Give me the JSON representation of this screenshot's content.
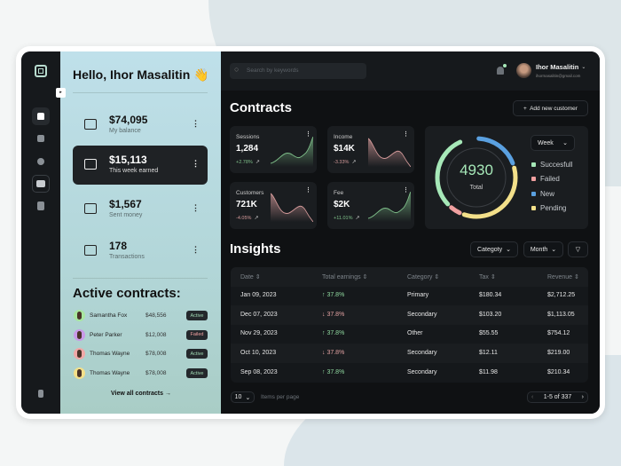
{
  "sidebar": {
    "items": [
      "home-icon",
      "chart-icon",
      "user-icon",
      "wallet-icon",
      "document-icon"
    ],
    "active": "home",
    "logout": "logout-icon"
  },
  "panel": {
    "greeting": "Hello, Ihor Masalitin 👋",
    "stats": [
      {
        "value": "$74,095",
        "label": "My balance",
        "icon": "bank-icon"
      },
      {
        "value": "$15,113",
        "label": "This week earned",
        "icon": "card-icon"
      },
      {
        "value": "$1,567",
        "label": "Sent money",
        "icon": "dollar-send-icon"
      },
      {
        "value": "178",
        "label": "Transactions",
        "icon": "transactions-icon"
      }
    ],
    "contracts_title": "Active contracts:",
    "contracts": [
      {
        "name": "Samantha Fox",
        "amount": "$48,556",
        "status": "Active",
        "avatar_bg": "#a8e6a0"
      },
      {
        "name": "Peter Parker",
        "amount": "$12,008",
        "status": "Failed",
        "avatar_bg": "#c99ae8"
      },
      {
        "name": "Thomas Wayne",
        "amount": "$78,008",
        "status": "Active",
        "avatar_bg": "#f0a8a8"
      },
      {
        "name": "Thomas Wayne",
        "amount": "$78,008",
        "status": "Active",
        "avatar_bg": "#f3e08a"
      }
    ],
    "view_all": "View all contracts →"
  },
  "header": {
    "search_placeholder": "Search by keywords",
    "user_name": "Ihor Masalitin",
    "user_email": "ihormasalitin@gmail.com"
  },
  "contracts": {
    "title": "Contracts",
    "add_button": "+  Add new customer",
    "cards": [
      {
        "label": "Sessions",
        "value": "1,284",
        "change": "+2.78%",
        "trend": "up"
      },
      {
        "label": "Income",
        "value": "$14K",
        "change": "-3.33%",
        "trend": "down"
      },
      {
        "label": "Customers",
        "value": "721K",
        "change": "-4.05%",
        "trend": "down"
      },
      {
        "label": "Fee",
        "value": "$2K",
        "change": "+11.01%",
        "trend": "up"
      }
    ],
    "donut": {
      "total": "4930",
      "total_label": "Total",
      "period": "Week",
      "legend": [
        {
          "name": "Succesfull",
          "color": "#a6e8b8"
        },
        {
          "name": "Failed",
          "color": "#f0a0a0"
        },
        {
          "name": "New",
          "color": "#5aa0e0"
        },
        {
          "name": "Pending",
          "color": "#f3e08a"
        }
      ],
      "segments": [
        {
          "name": "New",
          "fraction": 0.2
        },
        {
          "name": "Pending",
          "fraction": 0.36
        },
        {
          "name": "Failed",
          "fraction": 0.06
        },
        {
          "name": "Succesfull",
          "fraction": 0.32
        }
      ]
    }
  },
  "insights": {
    "title": "Insights",
    "filters": [
      "Categoty",
      "Month"
    ],
    "columns": [
      "Date ⇕",
      "Total earnings ⇕",
      "Category ⇕",
      "Tax ⇕",
      "Revenue ⇕"
    ],
    "rows": [
      {
        "date": "Jan 09, 2023",
        "earn": "↑ 37.8%",
        "dir": "up",
        "cat": "Primary",
        "tax": "$180.34",
        "rev": "$2,712.25"
      },
      {
        "date": "Dec 07, 2023",
        "earn": "↓ 37.8%",
        "dir": "down",
        "cat": "Secondary",
        "tax": "$103.20",
        "rev": "$1,113.05"
      },
      {
        "date": "Nov 29, 2023",
        "earn": "↑ 37.8%",
        "dir": "up",
        "cat": "Other",
        "tax": "$55.55",
        "rev": "$754.12"
      },
      {
        "date": "Oct 10, 2023",
        "earn": "↓ 37.8%",
        "dir": "down",
        "cat": "Secondary",
        "tax": "$12.11",
        "rev": "$219.00"
      },
      {
        "date": "Sep 08, 2023",
        "earn": "↑ 37.8%",
        "dir": "up",
        "cat": "Secondary",
        "tax": "$11.98",
        "rev": "$210.34"
      }
    ],
    "per_page": "10",
    "per_page_label": "Items per page",
    "pagination": "1-5 of 337"
  }
}
